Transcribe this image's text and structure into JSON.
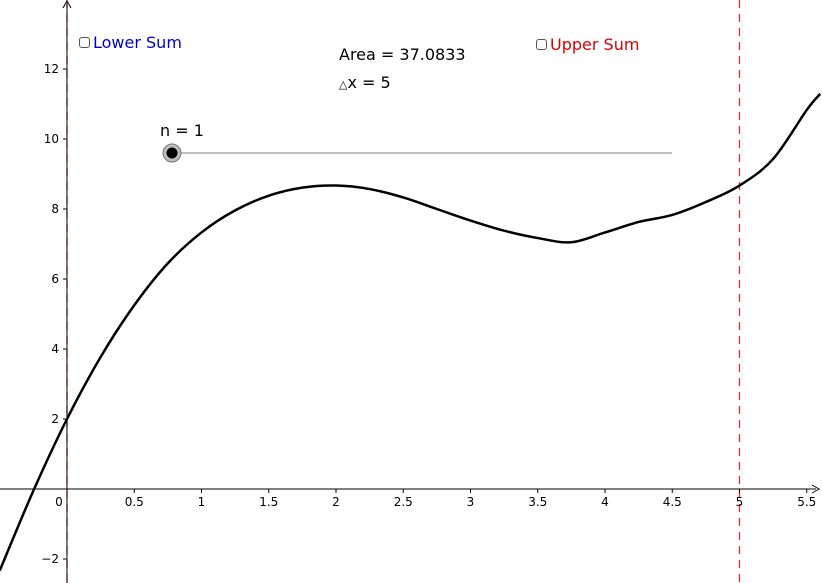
{
  "checkboxes": {
    "lower_sum": {
      "label": "Lower Sum",
      "checked": false,
      "color": "#0000cc"
    },
    "upper_sum": {
      "label": "Upper Sum",
      "checked": false,
      "color": "#dd0000"
    }
  },
  "info": {
    "area_text": "Area = 37.0833",
    "delta_symbol": "△",
    "dx_text": "x = 5"
  },
  "slider": {
    "label": "n = 1",
    "value": 1,
    "position_fraction": 0.0
  },
  "chart_data": {
    "type": "line",
    "title": "",
    "xlabel": "",
    "ylabel": "",
    "xlim": [
      -0.5,
      5.6
    ],
    "ylim": [
      -2.6,
      13.9
    ],
    "x_ticks": [
      0.5,
      1,
      1.5,
      2,
      2.5,
      3,
      3.5,
      4,
      4.5,
      5,
      5.5
    ],
    "x_tick_labels": [
      "0.5",
      "1",
      "1.5",
      "2",
      "2.5",
      "3",
      "3.5",
      "4",
      "4.5",
      "5",
      "5.5"
    ],
    "y_ticks": [
      -2,
      2,
      4,
      6,
      8,
      10,
      12
    ],
    "y_tick_labels": [
      "−2",
      "2",
      "4",
      "6",
      "8",
      "10",
      "12"
    ],
    "origin_label": "0",
    "curve_color": "#000000",
    "bound_line_color": "#e03030",
    "lower_bound": 0,
    "upper_bound": 5,
    "series": [
      {
        "x": [
          -0.5,
          -0.25,
          0,
          0.25,
          0.5,
          0.75,
          1,
          1.25,
          1.5,
          1.75,
          2,
          2.25,
          2.5,
          2.75,
          3,
          3.25,
          3.5,
          3.75,
          4,
          4.25,
          4.5,
          4.75,
          5,
          5.25,
          5.5,
          5.6
        ],
        "y": [
          -2.33,
          -0.05,
          2.0,
          3.77,
          5.25,
          6.45,
          7.33,
          7.96,
          8.38,
          8.61,
          8.67,
          8.57,
          8.33,
          8.0,
          7.67,
          7.38,
          7.17,
          7.05,
          7.33,
          7.63,
          7.83,
          8.2,
          8.67,
          9.43,
          10.83,
          11.29
        ]
      }
    ]
  }
}
